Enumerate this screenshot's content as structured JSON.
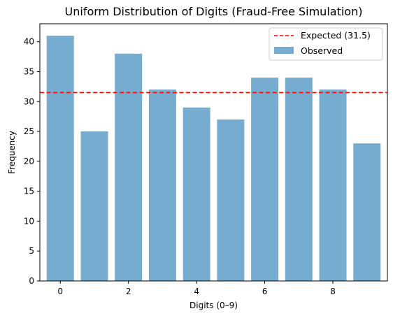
{
  "chart_data": {
    "type": "bar",
    "title": "Uniform Distribution of Digits (Fraud-Free Simulation)",
    "xlabel": "Digits (0–9)",
    "ylabel": "Frequency",
    "categories": [
      0,
      1,
      2,
      3,
      4,
      5,
      6,
      7,
      8,
      9
    ],
    "series": [
      {
        "name": "Observed",
        "values": [
          41,
          25,
          38,
          32,
          29,
          27,
          34,
          34,
          32,
          23
        ],
        "color": "#77acd1"
      }
    ],
    "reference_line": {
      "label": "Expected (31.5)",
      "value": 31.5,
      "color": "#ff0000",
      "style": "dashed"
    },
    "xlim": [
      -0.6,
      9.6
    ],
    "ylim": [
      0,
      43
    ],
    "xticks": [
      0,
      2,
      4,
      6,
      8
    ],
    "yticks": [
      0,
      5,
      10,
      15,
      20,
      25,
      30,
      35,
      40
    ],
    "grid": false,
    "legend_position": "top-right"
  }
}
